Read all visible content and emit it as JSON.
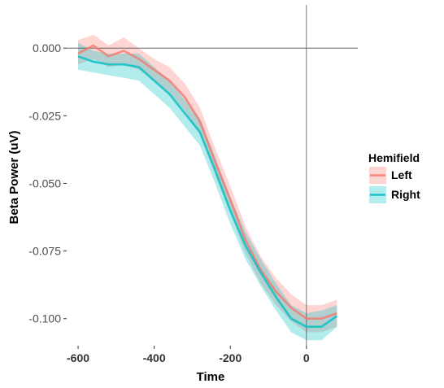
{
  "chart_data": {
    "type": "line",
    "xlabel": "Time",
    "ylabel": "Beta Power (uV)",
    "xlim": [
      -630,
      135
    ],
    "ylim": [
      -0.11,
      0.016
    ],
    "x_ticks": [
      -600,
      -400,
      -200,
      0
    ],
    "y_ticks": [
      0.0,
      -0.025,
      -0.05,
      -0.075,
      -0.1
    ],
    "x_tick_labels": [
      "-600",
      "-400",
      "-200",
      "0"
    ],
    "y_tick_labels": [
      "0.000",
      "-0.025",
      "-0.050",
      "-0.075",
      "-0.100"
    ],
    "reference_lines": {
      "hline": 0,
      "vline": 0
    },
    "grid": false,
    "legend": {
      "title": "Hemifield",
      "position": "right"
    },
    "series": [
      {
        "name": "Left",
        "color": "#F8766D",
        "x": [
          -600,
          -560,
          -520,
          -480,
          -440,
          -400,
          -360,
          -320,
          -280,
          -240,
          -200,
          -160,
          -120,
          -80,
          -40,
          0,
          40,
          80
        ],
        "y": [
          -0.002,
          0.001,
          -0.003,
          -0.001,
          -0.004,
          -0.008,
          -0.012,
          -0.018,
          -0.027,
          -0.042,
          -0.056,
          -0.071,
          -0.082,
          -0.09,
          -0.096,
          -0.1,
          -0.1,
          -0.098
        ],
        "lower": [
          -0.006,
          -0.004,
          -0.007,
          -0.006,
          -0.008,
          -0.012,
          -0.017,
          -0.023,
          -0.032,
          -0.047,
          -0.061,
          -0.076,
          -0.087,
          -0.095,
          -0.101,
          -0.105,
          -0.105,
          -0.103
        ],
        "upper": [
          0.003,
          0.005,
          0.001,
          0.004,
          0.0,
          -0.004,
          -0.007,
          -0.013,
          -0.022,
          -0.037,
          -0.051,
          -0.066,
          -0.077,
          -0.085,
          -0.091,
          -0.095,
          -0.095,
          -0.093
        ]
      },
      {
        "name": "Right",
        "color": "#00BFC4",
        "x": [
          -600,
          -560,
          -520,
          -480,
          -440,
          -400,
          -360,
          -320,
          -280,
          -240,
          -200,
          -160,
          -120,
          -80,
          -40,
          0,
          40,
          80
        ],
        "y": [
          -0.003,
          -0.005,
          -0.006,
          -0.006,
          -0.007,
          -0.012,
          -0.017,
          -0.024,
          -0.031,
          -0.045,
          -0.06,
          -0.073,
          -0.083,
          -0.092,
          -0.1,
          -0.103,
          -0.103,
          -0.099
        ],
        "lower": [
          -0.008,
          -0.009,
          -0.01,
          -0.011,
          -0.012,
          -0.017,
          -0.022,
          -0.029,
          -0.036,
          -0.05,
          -0.065,
          -0.078,
          -0.088,
          -0.097,
          -0.105,
          -0.108,
          -0.108,
          -0.103
        ],
        "upper": [
          0.002,
          -0.001,
          -0.002,
          -0.002,
          -0.002,
          -0.007,
          -0.012,
          -0.019,
          -0.026,
          -0.04,
          -0.055,
          -0.068,
          -0.078,
          -0.087,
          -0.095,
          -0.098,
          -0.097,
          -0.095
        ]
      }
    ]
  }
}
